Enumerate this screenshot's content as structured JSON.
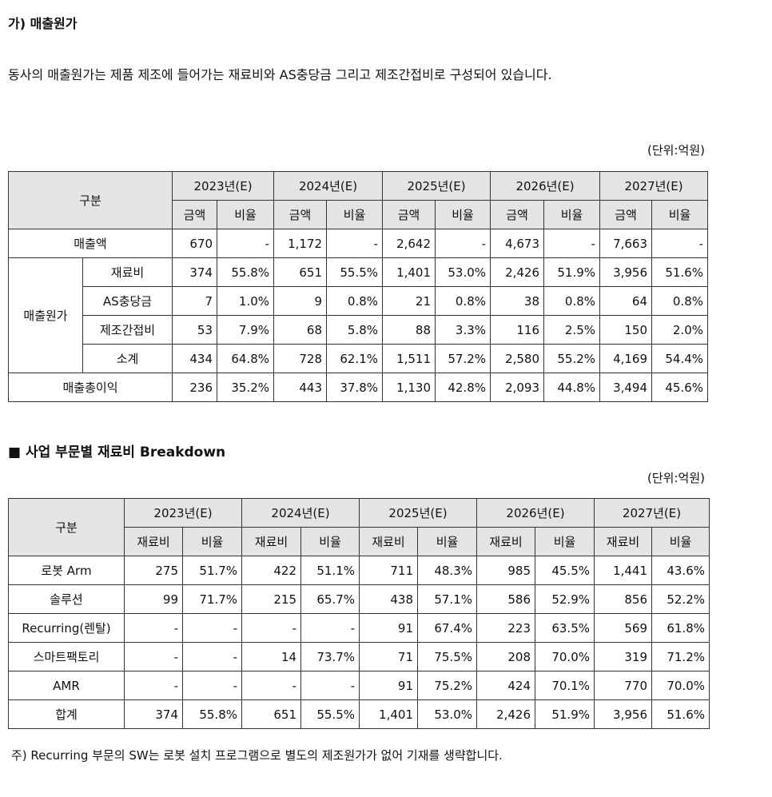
{
  "heading": "가) 매출원가",
  "paragraph": "동사의 매출원가는 제품 제조에 들어가는 재료비와 AS충당금 그리고 제조간접비로 구성되어 있습니다.",
  "table1": {
    "unit": "(단위:억원)",
    "header_label": "구분",
    "years": [
      "2023년(E)",
      "2024년(E)",
      "2025년(E)",
      "2026년(E)",
      "2027년(E)"
    ],
    "sub_headers": [
      "금액",
      "비율",
      "금액",
      "비율",
      "금액",
      "비율",
      "금액",
      "비율",
      "금액",
      "비율"
    ],
    "revenue": {
      "label": "매출액",
      "cells": [
        "670",
        "-",
        "1,172",
        "-",
        "2,642",
        "-",
        "4,673",
        "-",
        "7,663",
        "-"
      ]
    },
    "cost_of_sales": {
      "label": "매출원가",
      "rows": [
        {
          "label": "재료비",
          "cells": [
            "374",
            "55.8%",
            "651",
            "55.5%",
            "1,401",
            "53.0%",
            "2,426",
            "51.9%",
            "3,956",
            "51.6%"
          ]
        },
        {
          "label": "AS충당금",
          "cells": [
            "7",
            "1.0%",
            "9",
            "0.8%",
            "21",
            "0.8%",
            "38",
            "0.8%",
            "64",
            "0.8%"
          ]
        },
        {
          "label": "제조간접비",
          "cells": [
            "53",
            "7.9%",
            "68",
            "5.8%",
            "88",
            "3.3%",
            "116",
            "2.5%",
            "150",
            "2.0%"
          ]
        },
        {
          "label": "소계",
          "cells": [
            "434",
            "64.8%",
            "728",
            "62.1%",
            "1,511",
            "57.2%",
            "2,580",
            "55.2%",
            "4,169",
            "54.4%"
          ]
        }
      ]
    },
    "gross_profit": {
      "label": "매출총이익",
      "cells": [
        "236",
        "35.2%",
        "443",
        "37.8%",
        "1,130",
        "42.8%",
        "2,093",
        "44.8%",
        "3,494",
        "45.6%"
      ]
    }
  },
  "section2_title": "■ 사업 부문별 재료비 Breakdown",
  "table2": {
    "unit": "(단위:억원)",
    "header_label": "구분",
    "years": [
      "2023년(E)",
      "2024년(E)",
      "2025년(E)",
      "2026년(E)",
      "2027년(E)"
    ],
    "sub_headers": [
      "재료비",
      "비율",
      "재료비",
      "비율",
      "재료비",
      "비율",
      "재료비",
      "비율",
      "재료비",
      "비율"
    ],
    "rows": [
      {
        "label": "로봇 Arm",
        "cells": [
          "275",
          "51.7%",
          "422",
          "51.1%",
          "711",
          "48.3%",
          "985",
          "45.5%",
          "1,441",
          "43.6%"
        ]
      },
      {
        "label": "솔루션",
        "cells": [
          "99",
          "71.7%",
          "215",
          "65.7%",
          "438",
          "57.1%",
          "586",
          "52.9%",
          "856",
          "52.2%"
        ]
      },
      {
        "label": "Recurring(렌탈)",
        "cells": [
          "-",
          "-",
          "-",
          "-",
          "91",
          "67.4%",
          "223",
          "63.5%",
          "569",
          "61.8%"
        ]
      },
      {
        "label": "스마트팩토리",
        "cells": [
          "-",
          "-",
          "14",
          "73.7%",
          "71",
          "75.5%",
          "208",
          "70.0%",
          "319",
          "71.2%"
        ]
      },
      {
        "label": "AMR",
        "cells": [
          "-",
          "-",
          "-",
          "-",
          "91",
          "75.2%",
          "424",
          "70.1%",
          "770",
          "70.0%"
        ]
      },
      {
        "label": "합계",
        "cells": [
          "374",
          "55.8%",
          "651",
          "55.5%",
          "1,401",
          "53.0%",
          "2,426",
          "51.9%",
          "3,956",
          "51.6%"
        ]
      }
    ]
  },
  "footnote": "주) Recurring 부문의 SW는 로봇 설치 프로그램으로 별도의 제조원가가 없어 기재를 생략합니다."
}
